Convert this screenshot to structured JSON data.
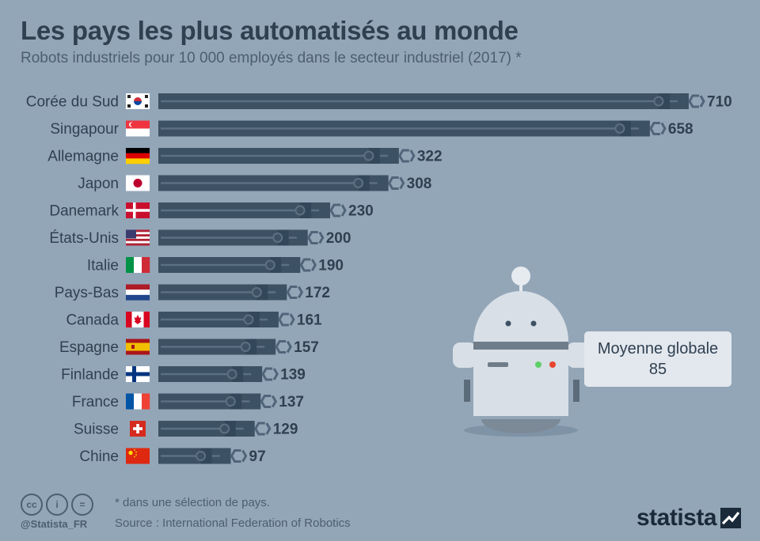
{
  "header": {
    "title": "Les pays les plus automatisés au monde",
    "subtitle": "Robots industriels pour 10 000 employés dans le secteur industriel (2017) *"
  },
  "chart_data": {
    "type": "bar",
    "orientation": "horizontal",
    "title": "Les pays les plus automatisés au monde",
    "subtitle": "Robots industriels pour 10 000 employés dans le secteur industriel (2017) *",
    "categories": [
      "Corée du Sud",
      "Singapour",
      "Allemagne",
      "Japon",
      "Danemark",
      "États-Unis",
      "Italie",
      "Pays-Bas",
      "Canada",
      "Espagne",
      "Finlande",
      "France",
      "Suisse",
      "Chine"
    ],
    "values": [
      710,
      658,
      322,
      308,
      230,
      200,
      190,
      172,
      161,
      157,
      139,
      137,
      129,
      97
    ],
    "xlim": [
      0,
      710
    ],
    "grid": false,
    "legend": "none",
    "annotation": {
      "label": "Moyenne globale",
      "value": 85
    }
  },
  "colors": {
    "background": "#93a6b8",
    "bar": "#3d5164",
    "bar_rail": "#5c7082",
    "text": "#2f4051"
  },
  "flags": [
    "south-korea-flag-icon",
    "singapore-flag-icon",
    "germany-flag-icon",
    "japan-flag-icon",
    "denmark-flag-icon",
    "usa-flag-icon",
    "italy-flag-icon",
    "netherlands-flag-icon",
    "canada-flag-icon",
    "spain-flag-icon",
    "finland-flag-icon",
    "france-flag-icon",
    "switzerland-flag-icon",
    "china-flag-icon"
  ],
  "callout": {
    "label": "Moyenne globale",
    "value": "85"
  },
  "footer": {
    "handle": "@Statista_FR",
    "footnote": "* dans une sélection de pays.",
    "source": "Source : International Federation of Robotics",
    "brand": "statista",
    "icons": [
      "creative-commons-icon",
      "attribution-icon",
      "no-derivatives-icon"
    ],
    "icon_glyphs": [
      "cc",
      "i",
      "="
    ]
  }
}
